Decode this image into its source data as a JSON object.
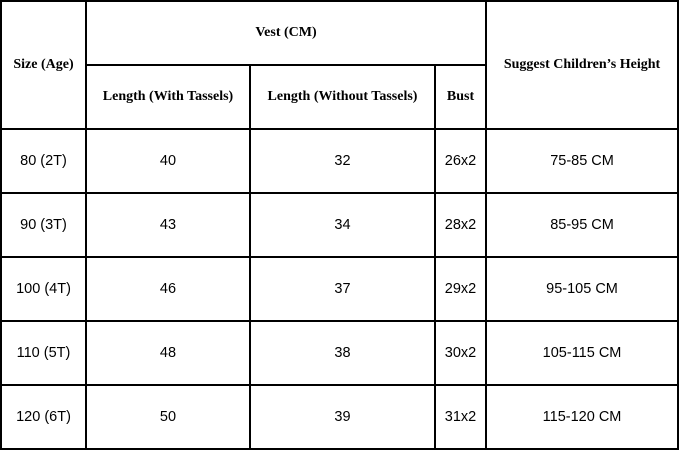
{
  "table": {
    "header": {
      "size": "Size (Age)",
      "vest": "Vest (CM)",
      "length_with": "Length (With Tassels)",
      "length_without": "Length (Without Tassels)",
      "bust": "Bust",
      "height": "Suggest Children’s Height"
    },
    "rows": [
      {
        "size": "80 (2T)",
        "length_with": "40",
        "length_without": "32",
        "bust": "26x2",
        "height": "75-85 CM"
      },
      {
        "size": "90 (3T)",
        "length_with": "43",
        "length_without": "34",
        "bust": "28x2",
        "height": "85-95 CM"
      },
      {
        "size": "100 (4T)",
        "length_with": "46",
        "length_without": "37",
        "bust": "29x2",
        "height": "95-105 CM"
      },
      {
        "size": "110 (5T)",
        "length_with": "48",
        "length_without": "38",
        "bust": "30x2",
        "height": "105-115 CM"
      },
      {
        "size": "120 (6T)",
        "length_with": "50",
        "length_without": "39",
        "bust": "31x2",
        "height": "115-120 CM"
      }
    ]
  }
}
